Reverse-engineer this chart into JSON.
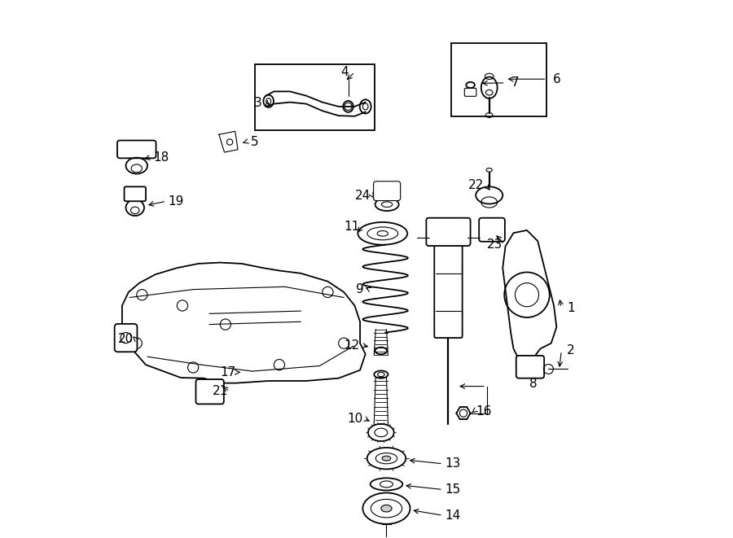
{
  "bg_color": "#ffffff",
  "line_color": "#000000",
  "label_fontsize": 11,
  "labels_info": [
    [
      14,
      0.66,
      0.042,
      0.582,
      0.052
    ],
    [
      15,
      0.66,
      0.09,
      0.568,
      0.098
    ],
    [
      13,
      0.66,
      0.138,
      0.575,
      0.145
    ],
    [
      10,
      0.478,
      0.222,
      0.51,
      0.215
    ],
    [
      12,
      0.473,
      0.358,
      0.508,
      0.355
    ],
    [
      9,
      0.488,
      0.462,
      0.494,
      0.468
    ],
    [
      11,
      0.473,
      0.578,
      0.48,
      0.564
    ],
    [
      24,
      0.493,
      0.636,
      0.516,
      0.628
    ],
    [
      16,
      0.718,
      0.236,
      0.692,
      0.23
    ],
    [
      17,
      0.243,
      0.308,
      0.266,
      0.308
    ],
    [
      21,
      0.228,
      0.273,
      0.228,
      0.283
    ],
    [
      20,
      0.053,
      0.37,
      0.063,
      0.378
    ],
    [
      19,
      0.146,
      0.626,
      0.09,
      0.618
    ],
    [
      18,
      0.118,
      0.708,
      0.083,
      0.703
    ],
    [
      5,
      0.293,
      0.736,
      0.266,
      0.733
    ],
    [
      3,
      0.298,
      0.808,
      0.316,
      0.813
    ],
    [
      4,
      0.46,
      0.866,
      0.46,
      0.848
    ],
    [
      1,
      0.88,
      0.428,
      0.858,
      0.448
    ],
    [
      2,
      0.88,
      0.348,
      0.858,
      0.313
    ],
    [
      22,
      0.703,
      0.656,
      0.733,
      0.643
    ],
    [
      23,
      0.738,
      0.546,
      0.738,
      0.566
    ],
    [
      6,
      0.853,
      0.853,
      0.758,
      0.853
    ],
    [
      7,
      0.776,
      0.846,
      0.71,
      0.845
    ]
  ]
}
